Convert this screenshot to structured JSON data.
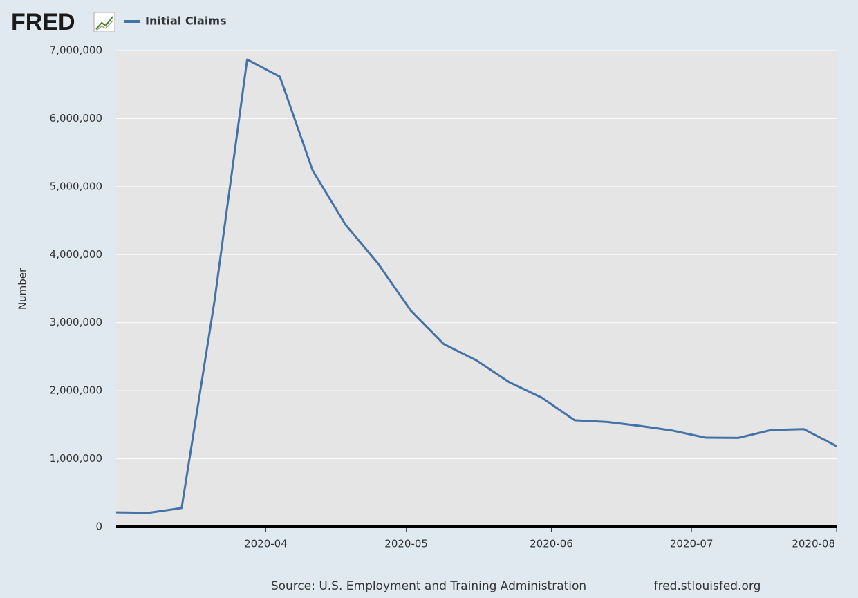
{
  "logo": "FRED",
  "chart_data": {
    "type": "line",
    "categories": [
      null,
      null,
      null,
      null,
      null,
      null,
      null,
      null,
      null,
      null,
      null,
      null,
      null,
      null,
      null,
      null,
      null,
      null,
      null,
      null,
      null,
      null,
      null
    ],
    "series": [
      {
        "name": "Initial Claims",
        "color": "#4572a7",
        "values": [
          212000,
          206000,
          276000,
          3307000,
          6867000,
          6615000,
          5237000,
          4442000,
          3867000,
          3176000,
          2687000,
          2446000,
          2126000,
          1897000,
          1566000,
          1540000,
          1482000,
          1413000,
          1310000,
          1307000,
          1422000,
          1435000,
          1186000
        ]
      }
    ],
    "xlim": [
      0,
      22
    ],
    "xticks": [
      {
        "value": 4.57,
        "label": "2020-04"
      },
      {
        "value": 8.86,
        "label": "2020-05"
      },
      {
        "value": 13.29,
        "label": "2020-06"
      },
      {
        "value": 17.57,
        "label": "2020-07"
      },
      {
        "value": 22,
        "label": "2020-08"
      }
    ],
    "ylim": [
      0,
      7000000
    ],
    "yticks": [
      0,
      {
        "value": 1000000,
        "label": "1,000,000"
      },
      {
        "value": 2000000,
        "label": "2,000,000"
      },
      {
        "value": 3000000,
        "label": "3,000,000"
      },
      {
        "value": 4000000,
        "label": "4,000,000"
      },
      {
        "value": 5000000,
        "label": "5,000,000"
      },
      {
        "value": 6000000,
        "label": "6,000,000"
      },
      {
        "value": 7000000,
        "label": "7,000,000"
      }
    ],
    "y_label": "Number",
    "grid": true,
    "source": "Source: U.S. Employment and Training Administration",
    "url": "fred.stlouisfed.org"
  }
}
